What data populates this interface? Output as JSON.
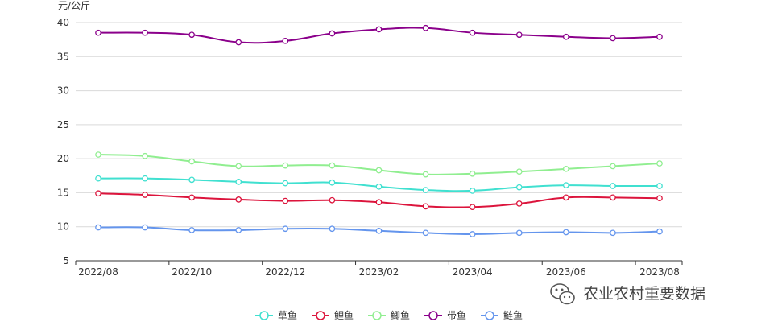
{
  "chart_data": {
    "type": "line",
    "ylabel": "元/公斤",
    "ylim": [
      5,
      40
    ],
    "yticks": [
      5,
      10,
      15,
      20,
      25,
      30,
      35,
      40
    ],
    "grid": true,
    "legend_position": "bottom",
    "x": [
      "2022/08",
      "2022/09",
      "2022/10",
      "2022/11",
      "2022/12",
      "2023/01",
      "2023/02",
      "2023/03",
      "2023/04",
      "2023/05",
      "2023/06",
      "2023/07",
      "2023/08"
    ],
    "x_tick_labels": [
      "2022/08",
      "2022/10",
      "2022/12",
      "2023/02",
      "2023/04",
      "2023/06",
      "2023/08"
    ],
    "series": [
      {
        "name": "草鱼",
        "color": "#40e0d0",
        "values": [
          17.1,
          17.1,
          16.9,
          16.6,
          16.4,
          16.5,
          15.9,
          15.4,
          15.3,
          15.8,
          16.1,
          16.0,
          16.0
        ]
      },
      {
        "name": "鲤鱼",
        "color": "#dc143c",
        "values": [
          14.9,
          14.7,
          14.3,
          14.0,
          13.8,
          13.9,
          13.6,
          13.0,
          12.9,
          13.4,
          14.3,
          14.3,
          14.2
        ]
      },
      {
        "name": "鲫鱼",
        "color": "#90ee90",
        "values": [
          20.6,
          20.4,
          19.6,
          18.9,
          19.0,
          19.0,
          18.3,
          17.7,
          17.8,
          18.1,
          18.5,
          18.9,
          19.3
        ]
      },
      {
        "name": "带鱼",
        "color": "#8b008b",
        "values": [
          38.5,
          38.5,
          38.2,
          37.1,
          37.3,
          38.4,
          39.0,
          39.2,
          38.5,
          38.2,
          37.9,
          37.7,
          37.9
        ]
      },
      {
        "name": "鲢鱼",
        "color": "#6495ed",
        "values": [
          9.9,
          9.9,
          9.5,
          9.5,
          9.7,
          9.7,
          9.4,
          9.1,
          8.9,
          9.1,
          9.2,
          9.1,
          9.3
        ]
      }
    ]
  },
  "watermark": {
    "text": "农业农村重要数据",
    "icon": "wechat-icon"
  }
}
